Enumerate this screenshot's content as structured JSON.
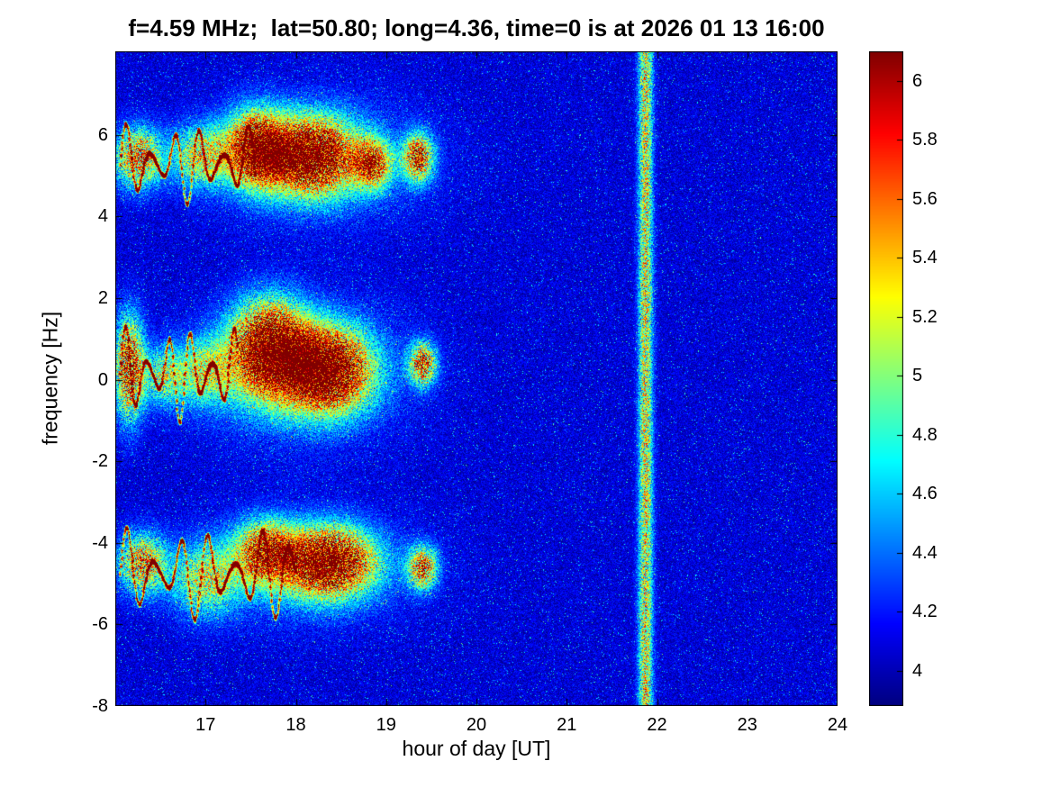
{
  "chart_data": {
    "type": "heatmap",
    "subtype": "doppler-spectrogram",
    "title": "f=4.59 MHz;  lat=50.80; long=4.36, time=0 is at 2026 01 13 16:00",
    "xlabel": "hour of day [UT]",
    "ylabel": "frequency [Hz]",
    "x_range": [
      16,
      24
    ],
    "y_range": [
      -8,
      8.05
    ],
    "x_ticks": [
      {
        "v": 17,
        "label": "17"
      },
      {
        "v": 18,
        "label": "18"
      },
      {
        "v": 19,
        "label": "19"
      },
      {
        "v": 20,
        "label": "20"
      },
      {
        "v": 21,
        "label": "21"
      },
      {
        "v": 22,
        "label": "22"
      },
      {
        "v": 23,
        "label": "23"
      },
      {
        "v": 24,
        "label": "24"
      }
    ],
    "y_ticks": [
      {
        "v": 6,
        "label": "6"
      },
      {
        "v": 4,
        "label": "4"
      },
      {
        "v": 2,
        "label": "2"
      },
      {
        "v": 0,
        "label": "0"
      },
      {
        "v": -2,
        "label": "-2"
      },
      {
        "v": -4,
        "label": "-4"
      },
      {
        "v": -6,
        "label": "-6"
      },
      {
        "v": -8,
        "label": "-8"
      }
    ],
    "colorbar": {
      "colormap": "jet",
      "clim": [
        3.88,
        6.1
      ],
      "ticks": [
        {
          "v": 6.0,
          "label": "6"
        },
        {
          "v": 5.8,
          "label": "5.8"
        },
        {
          "v": 5.6,
          "label": "5.6"
        },
        {
          "v": 5.4,
          "label": "5.4"
        },
        {
          "v": 5.2,
          "label": "5.2"
        },
        {
          "v": 5.0,
          "label": "5"
        },
        {
          "v": 4.8,
          "label": "4.8"
        },
        {
          "v": 4.6,
          "label": "4.6"
        },
        {
          "v": 4.4,
          "label": "4.4"
        },
        {
          "v": 4.2,
          "label": "4.2"
        },
        {
          "v": 4.0,
          "label": "4"
        }
      ]
    },
    "noise": {
      "floor": 3.9,
      "span": 0.35,
      "speckle_prob": 0.03,
      "speckle_amp": 0.55
    },
    "features": {
      "bands": [
        {
          "t": 16.25,
          "f": 5.45,
          "st": 0.18,
          "sf": 0.5,
          "a": 1.5
        },
        {
          "t": 16.95,
          "f": 5.5,
          "st": 0.22,
          "sf": 0.5,
          "a": 1.1
        },
        {
          "t": 17.55,
          "f": 5.7,
          "st": 0.22,
          "sf": 0.6,
          "a": 2.0
        },
        {
          "t": 18.15,
          "f": 5.5,
          "st": 0.33,
          "sf": 0.6,
          "a": 2.2
        },
        {
          "t": 18.2,
          "f": 5.4,
          "st": 0.75,
          "sf": 0.95,
          "a": 0.65
        },
        {
          "t": 18.85,
          "f": 5.3,
          "st": 0.14,
          "sf": 0.4,
          "a": 1.5
        },
        {
          "t": 19.35,
          "f": 5.45,
          "st": 0.11,
          "sf": 0.4,
          "a": 1.7
        },
        {
          "t": 16.15,
          "f": 0.3,
          "st": 0.11,
          "sf": 0.85,
          "a": 1.8
        },
        {
          "t": 16.55,
          "f": 0.1,
          "st": 0.18,
          "sf": 0.5,
          "a": 0.9
        },
        {
          "t": 17.0,
          "f": 0.2,
          "st": 0.2,
          "sf": 0.55,
          "a": 0.9
        },
        {
          "t": 17.7,
          "f": 0.8,
          "st": 0.28,
          "sf": 0.75,
          "a": 2.3
        },
        {
          "t": 18.35,
          "f": 0.25,
          "st": 0.3,
          "sf": 0.65,
          "a": 2.3
        },
        {
          "t": 18.05,
          "f": 0.2,
          "st": 0.7,
          "sf": 1.05,
          "a": 0.8
        },
        {
          "t": 19.4,
          "f": 0.4,
          "st": 0.1,
          "sf": 0.35,
          "a": 1.7
        },
        {
          "t": 16.3,
          "f": -4.5,
          "st": 0.18,
          "sf": 0.5,
          "a": 1.4
        },
        {
          "t": 17.0,
          "f": -4.9,
          "st": 0.25,
          "sf": 0.6,
          "a": 1.0
        },
        {
          "t": 17.65,
          "f": -4.2,
          "st": 0.22,
          "sf": 0.5,
          "a": 1.6
        },
        {
          "t": 18.35,
          "f": -4.45,
          "st": 0.33,
          "sf": 0.55,
          "a": 2.2
        },
        {
          "t": 18.1,
          "f": -4.6,
          "st": 0.75,
          "sf": 0.85,
          "a": 0.6
        },
        {
          "t": 19.4,
          "f": -4.6,
          "st": 0.11,
          "sf": 0.35,
          "a": 1.6
        }
      ],
      "traces": [
        {
          "t_start": 16.05,
          "t_end": 17.55,
          "f0": 5.3,
          "amp_hz": 1.0,
          "period": 0.27,
          "intensity": 2.2
        },
        {
          "t_start": 16.05,
          "t_end": 17.35,
          "f0": 0.15,
          "amp_hz": 1.2,
          "period": 0.24,
          "intensity": 2.3
        },
        {
          "t_start": 16.05,
          "t_end": 18.0,
          "f0": -4.75,
          "amp_hz": 1.15,
          "period": 0.3,
          "intensity": 2.2
        }
      ],
      "vertical_stripe": {
        "t": 21.87,
        "half_width_h": 0.06,
        "amp": 1.25
      }
    }
  }
}
